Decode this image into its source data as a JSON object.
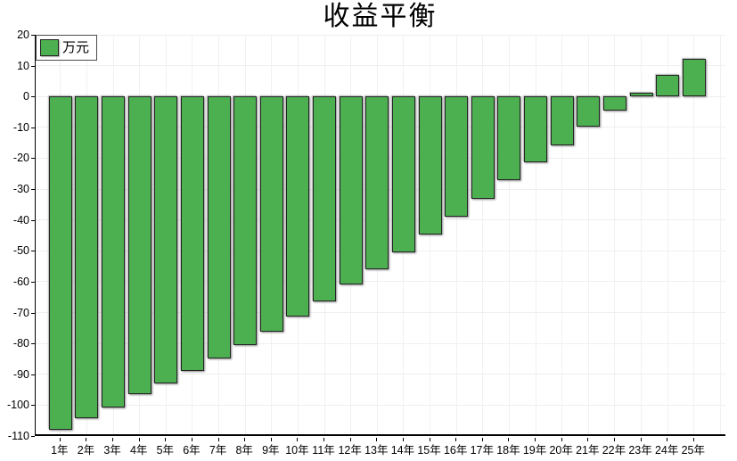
{
  "title": "收益平衡",
  "legend": {
    "label": "万元",
    "swatch_color": "#4caf50"
  },
  "colors": {
    "bar_fill": "#4caf50",
    "bar_border": "#242424",
    "axis": "#000000",
    "gridline": "#efefef",
    "background": "#ffffff",
    "text": "#000000"
  },
  "chart_data": {
    "type": "bar",
    "title": "收益平衡",
    "unit": "万元",
    "legend_entries": [
      "万元"
    ],
    "legend_position": "top-left",
    "grid": "on",
    "categories": [
      "1年",
      "2年",
      "3年",
      "4年",
      "5年",
      "6年",
      "7年",
      "8年",
      "9年",
      "10年",
      "11年",
      "12年",
      "13年",
      "14年",
      "15年",
      "16年",
      "17年",
      "18年",
      "19年",
      "20年",
      "21年",
      "22年",
      "23年",
      "24年",
      "25年"
    ],
    "values": [
      -108.0,
      -104.3,
      -100.8,
      -96.4,
      -93.0,
      -89.0,
      -84.8,
      -80.6,
      -76.3,
      -71.3,
      -66.4,
      -61.0,
      -55.9,
      -50.4,
      -44.7,
      -38.8,
      -33.2,
      -27.1,
      -21.4,
      -15.8,
      -9.7,
      -4.7,
      1.2,
      6.9,
      12.2
    ],
    "xlabel": "",
    "ylabel": "",
    "ylim": [
      -110,
      20
    ],
    "y_tick_step": 10,
    "y_ticks": [
      20,
      10,
      0,
      -10,
      -20,
      -30,
      -40,
      -50,
      -60,
      -70,
      -80,
      -90,
      -100,
      -110
    ]
  }
}
